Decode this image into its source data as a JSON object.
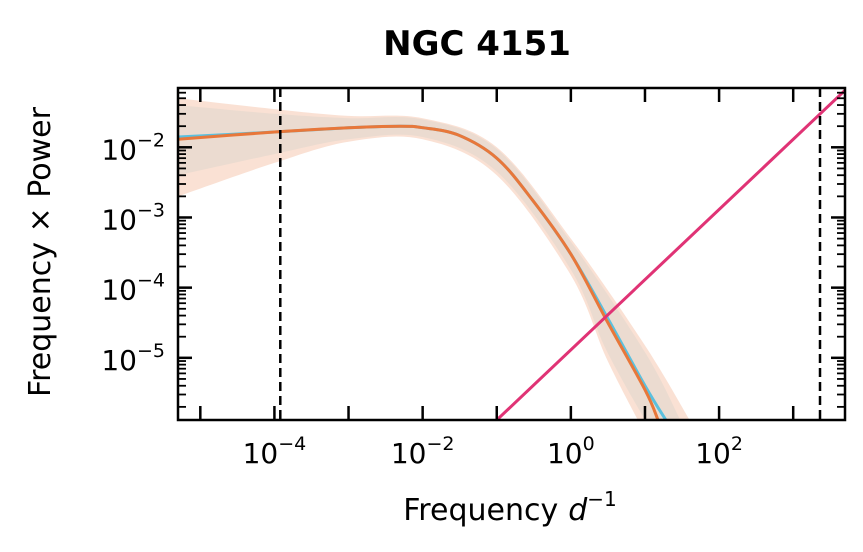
{
  "chart_data": {
    "type": "line",
    "title": "NGC 4151",
    "xlabel": "Frequency",
    "xlabel_math": "d",
    "xlabel_exp": "−1",
    "ylabel": "Frequency × Power",
    "x_scale": "log",
    "y_scale": "log",
    "xlim": [
      5e-06,
      5000
    ],
    "ylim": [
      1.3e-06,
      0.07
    ],
    "grid": false,
    "x_ticks": [
      {
        "base": "10",
        "exp": "−4",
        "value": 0.0001
      },
      {
        "base": "10",
        "exp": "−2",
        "value": 0.01
      },
      {
        "base": "10",
        "exp": "0",
        "value": 1
      },
      {
        "base": "10",
        "exp": "2",
        "value": 100
      }
    ],
    "y_ticks": [
      {
        "base": "10",
        "exp": "−2",
        "value": 0.01
      },
      {
        "base": "10",
        "exp": "−3",
        "value": 0.001
      },
      {
        "base": "10",
        "exp": "−4",
        "value": 0.0001
      },
      {
        "base": "10",
        "exp": "−5",
        "value": 1e-05
      }
    ],
    "vlines": [
      0.00012,
      2300
    ],
    "series": [
      {
        "color": "#5bc0de",
        "points": [
          [
            5e-06,
            0.014
          ],
          [
            0.0001,
            0.0165
          ],
          [
            0.001,
            0.019
          ],
          [
            0.005,
            0.02
          ],
          [
            0.01,
            0.019
          ],
          [
            0.03,
            0.015
          ],
          [
            0.1,
            0.007
          ],
          [
            0.3,
            0.0018
          ],
          [
            1,
            0.0003
          ],
          [
            3,
            4e-05
          ],
          [
            10,
            4e-06
          ],
          [
            20,
            1.2e-06
          ]
        ]
      },
      {
        "color": "#e8773a",
        "points": [
          [
            5e-06,
            0.013
          ],
          [
            0.0001,
            0.0165
          ],
          [
            0.001,
            0.019
          ],
          [
            0.005,
            0.02
          ],
          [
            0.01,
            0.019
          ],
          [
            0.03,
            0.015
          ],
          [
            0.1,
            0.007
          ],
          [
            0.3,
            0.0018
          ],
          [
            1,
            0.0003
          ],
          [
            3,
            3.5e-05
          ],
          [
            10,
            3.5e-06
          ],
          [
            15,
            1.3e-06
          ]
        ]
      },
      {
        "color": "#e03375",
        "points": [
          [
            0.1,
            1.3e-06
          ],
          [
            5000,
            0.065
          ]
        ]
      }
    ],
    "bands": [
      {
        "color": "#e8773a",
        "upper": [
          [
            5e-06,
            0.05
          ],
          [
            0.0001,
            0.035
          ],
          [
            0.001,
            0.028
          ],
          [
            0.01,
            0.026
          ],
          [
            0.1,
            0.01
          ],
          [
            1,
            0.0005
          ],
          [
            10,
            1.5e-05
          ],
          [
            40,
            1.3e-06
          ]
        ],
        "lower": [
          [
            5e-06,
            0.002
          ],
          [
            0.0001,
            0.006
          ],
          [
            0.001,
            0.012
          ],
          [
            0.01,
            0.013
          ],
          [
            0.1,
            0.004
          ],
          [
            1,
            0.00015
          ],
          [
            3,
            1e-05
          ],
          [
            8,
            1.3e-06
          ]
        ]
      },
      {
        "color": "#b5c9c6",
        "upper": [
          [
            5e-06,
            0.04
          ],
          [
            0.0001,
            0.03
          ],
          [
            0.001,
            0.026
          ],
          [
            0.01,
            0.025
          ],
          [
            0.1,
            0.0095
          ],
          [
            1,
            0.00045
          ],
          [
            10,
            1.2e-05
          ],
          [
            30,
            1.3e-06
          ]
        ],
        "lower": [
          [
            5e-06,
            0.004
          ],
          [
            0.0001,
            0.008
          ],
          [
            0.001,
            0.013
          ],
          [
            0.01,
            0.014
          ],
          [
            0.1,
            0.0045
          ],
          [
            1,
            0.00018
          ],
          [
            3,
            1.3e-05
          ],
          [
            10,
            1.3e-06
          ]
        ]
      }
    ]
  }
}
